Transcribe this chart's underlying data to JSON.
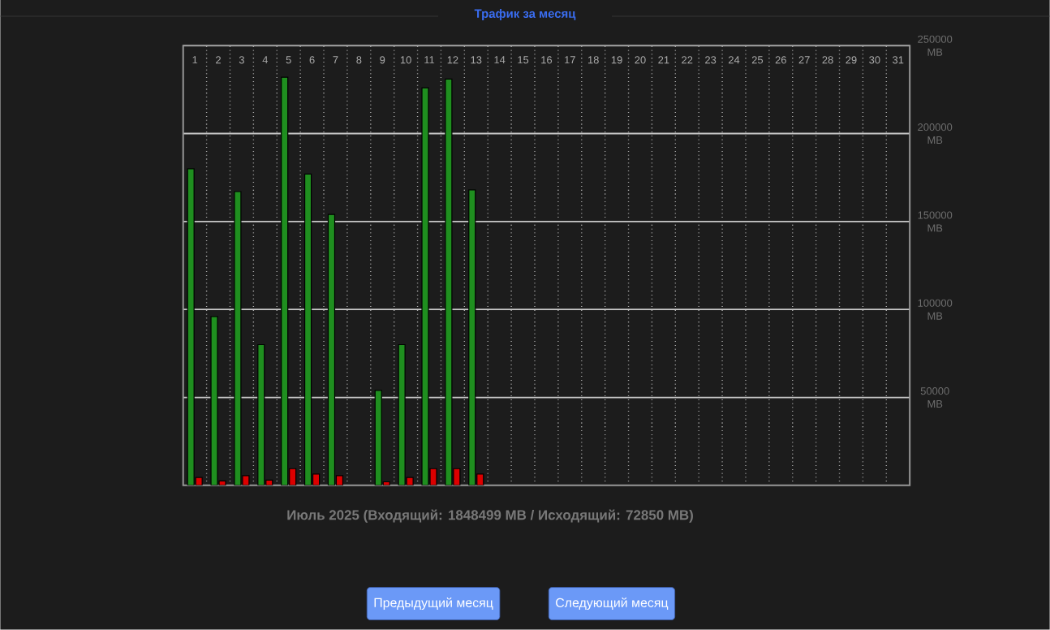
{
  "chart_data": {
    "type": "bar",
    "title": "Трафик за месяц",
    "categories": [
      "1",
      "2",
      "3",
      "4",
      "5",
      "6",
      "7",
      "8",
      "9",
      "10",
      "11",
      "12",
      "13",
      "14",
      "15",
      "16",
      "17",
      "18",
      "19",
      "20",
      "21",
      "22",
      "23",
      "24",
      "25",
      "26",
      "27",
      "28",
      "29",
      "30",
      "31"
    ],
    "series": [
      {
        "color": "#1f8f1f",
        "values": [
          180000,
          96000,
          167000,
          80000,
          232000,
          177000,
          154000,
          null,
          54000,
          80000,
          226000,
          231000,
          168000,
          null,
          null,
          null,
          null,
          null,
          null,
          null,
          null,
          null,
          null,
          null,
          null,
          null,
          null,
          null,
          null,
          null,
          null
        ]
      },
      {
        "color": "#dd0000",
        "values": [
          4500,
          2500,
          5500,
          3000,
          9500,
          6500,
          5500,
          null,
          2000,
          4500,
          9500,
          9500,
          6500,
          null,
          null,
          null,
          null,
          null,
          null,
          null,
          null,
          null,
          null,
          null,
          null,
          null,
          null,
          null,
          null,
          null,
          null
        ]
      }
    ],
    "ylim": [
      0,
      250000
    ],
    "yticks": [
      {
        "value": 50000,
        "label": "50000 MB"
      },
      {
        "value": 100000,
        "label": "100000 MB"
      },
      {
        "value": 150000,
        "label": "150000 MB"
      },
      {
        "value": 200000,
        "label": "200000 MB"
      },
      {
        "value": 250000,
        "label": "250000 MB"
      }
    ],
    "grid": true,
    "annotations": [
      "Июль 2025 (Входящий: 1848499 MB / Исходящий: 72850 MB)",
      "Предыдущий месяц",
      "Следующий месяц"
    ]
  }
}
